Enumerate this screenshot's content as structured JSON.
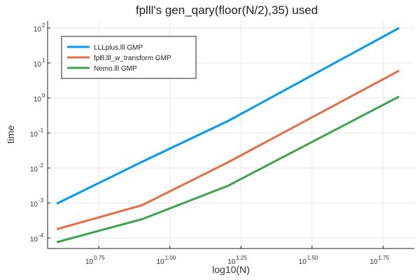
{
  "chart_data": {
    "type": "line",
    "title": "fplll's gen_qary(floor(N/2),35) used",
    "xlabel": "log10(N)",
    "ylabel": "time",
    "x_scale": "log10",
    "y_scale": "log10",
    "xlim_log10": [
      0.57,
      1.86
    ],
    "ylim_log10": [
      -4.3,
      2.2
    ],
    "x_ticks": [
      {
        "base": "10",
        "exp": "0.75",
        "value": 0.75
      },
      {
        "base": "10",
        "exp": "1.00",
        "value": 1.0
      },
      {
        "base": "10",
        "exp": "1.25",
        "value": 1.25
      },
      {
        "base": "10",
        "exp": "1.50",
        "value": 1.5
      },
      {
        "base": "10",
        "exp": "1.75",
        "value": 1.75
      }
    ],
    "y_ticks": [
      {
        "base": "10",
        "exp": "-4",
        "value": -4
      },
      {
        "base": "10",
        "exp": "-3",
        "value": -3
      },
      {
        "base": "10",
        "exp": "-2",
        "value": -2
      },
      {
        "base": "10",
        "exp": "-1",
        "value": -1
      },
      {
        "base": "10",
        "exp": "0",
        "value": 0
      },
      {
        "base": "10",
        "exp": "1",
        "value": 1
      },
      {
        "base": "10",
        "exp": "2",
        "value": 2
      }
    ],
    "grid": true,
    "legend_position": "top-left",
    "series": [
      {
        "name": "LLLplus.lll GMP",
        "color": "#009AF9",
        "x": [
          0.602,
          0.903,
          1.204,
          1.806
        ],
        "y": [
          -3.02,
          -1.82,
          -0.66,
          2.0
        ]
      },
      {
        "name": "fplll.lll_w_transform GMP",
        "color": "#E26F46",
        "x": [
          0.602,
          0.903,
          1.204,
          1.806
        ],
        "y": [
          -3.75,
          -3.06,
          -1.84,
          0.78
        ]
      },
      {
        "name": "Nemo.lll GMP",
        "color": "#3DA44D",
        "x": [
          0.602,
          0.903,
          1.204,
          1.806
        ],
        "y": [
          -4.12,
          -3.46,
          -2.51,
          0.04
        ]
      }
    ]
  }
}
